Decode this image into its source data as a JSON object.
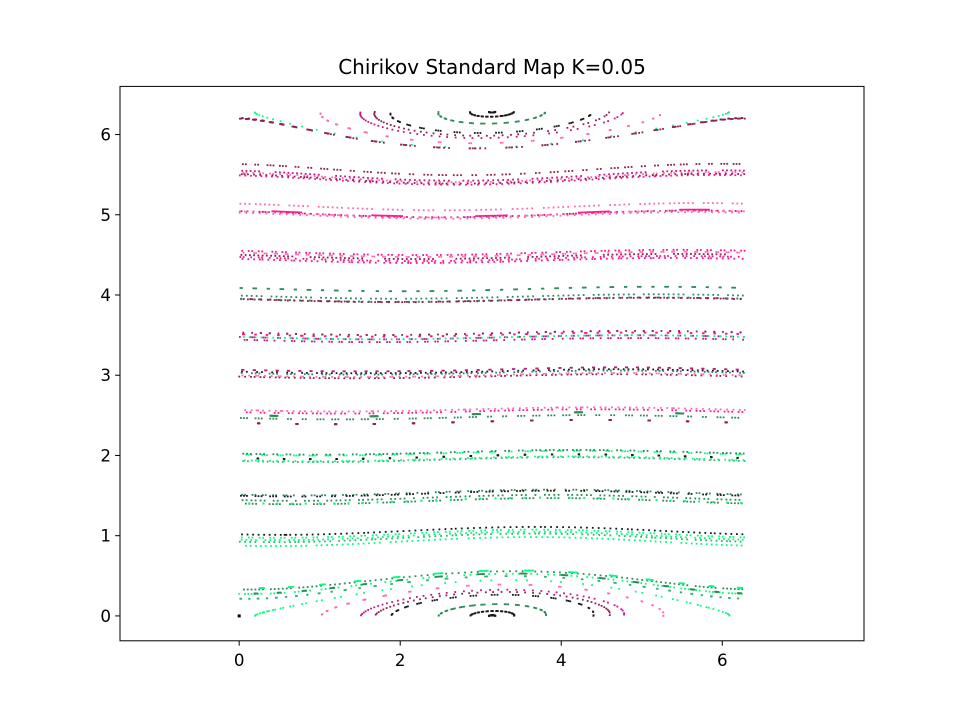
{
  "chart_data": {
    "type": "scatter",
    "title": "Chirikov Standard Map K=0.05",
    "xlabel": "",
    "ylabel": "",
    "xlim": [
      -1.48,
      7.76
    ],
    "ylim": [
      -0.31,
      6.6
    ],
    "xticks": [
      0,
      2,
      4,
      6
    ],
    "yticks": [
      0,
      1,
      2,
      3,
      4,
      5,
      6
    ],
    "grid": false,
    "legend": "none",
    "K": 0.05,
    "theta_range": [
      0,
      6.2832
    ],
    "p_range": [
      0,
      6.2832
    ],
    "initial_p": [
      0,
      0.5,
      1.0,
      1.5,
      2.0,
      2.5,
      3.0,
      3.5,
      4.0,
      4.5,
      5.0,
      5.5,
      6.0
    ],
    "point_colors": [
      "#1a1a1a",
      "#2e8b57",
      "#3cb371",
      "#00ff7f",
      "#90ee90",
      "#8b2252",
      "#c71585",
      "#ff69b4",
      "#ff1493",
      "#ffb6c1"
    ]
  }
}
